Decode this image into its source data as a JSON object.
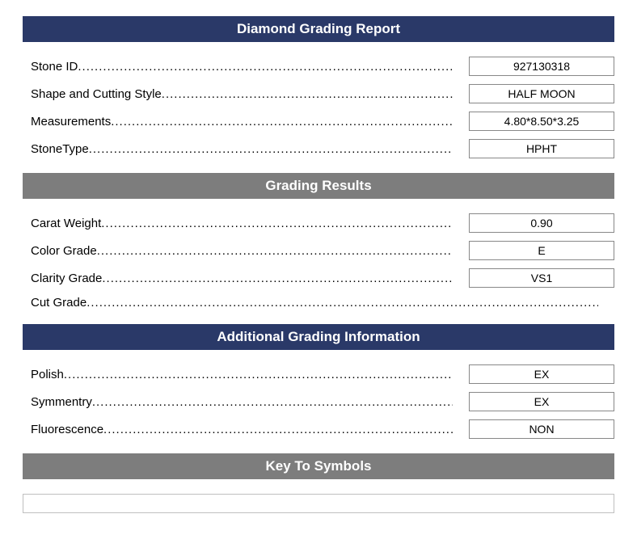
{
  "colors": {
    "navy": "#2a3968",
    "gray": "#7d7d7d",
    "border": "#888888",
    "text": "#000000",
    "background": "#ffffff"
  },
  "sections": {
    "main": {
      "title": "Diamond Grading Report",
      "header_color": "#2a3968",
      "fields": [
        {
          "label": "Stone ID",
          "value": "927130318"
        },
        {
          "label": "Shape and Cutting Style",
          "value": "HALF MOON"
        },
        {
          "label": "Measurements",
          "value": "4.80*8.50*3.25"
        },
        {
          "label": "StoneType",
          "value": "HPHT"
        }
      ]
    },
    "grading": {
      "title": "Grading Results",
      "header_color": "#7d7d7d",
      "fields": [
        {
          "label": "Carat Weight",
          "value": "0.90"
        },
        {
          "label": "Color Grade",
          "value": "E"
        },
        {
          "label": "Clarity Grade",
          "value": "VS1"
        },
        {
          "label": "Cut Grade",
          "value": ""
        }
      ]
    },
    "additional": {
      "title": "Additional Grading Information",
      "header_color": "#2a3968",
      "fields": [
        {
          "label": "Polish",
          "value": "EX"
        },
        {
          "label": "Symmentry",
          "value": "EX"
        },
        {
          "label": "Fluorescence",
          "value": "NON"
        }
      ]
    },
    "symbols": {
      "title": "Key To Symbols",
      "header_color": "#7d7d7d",
      "content": ""
    }
  }
}
